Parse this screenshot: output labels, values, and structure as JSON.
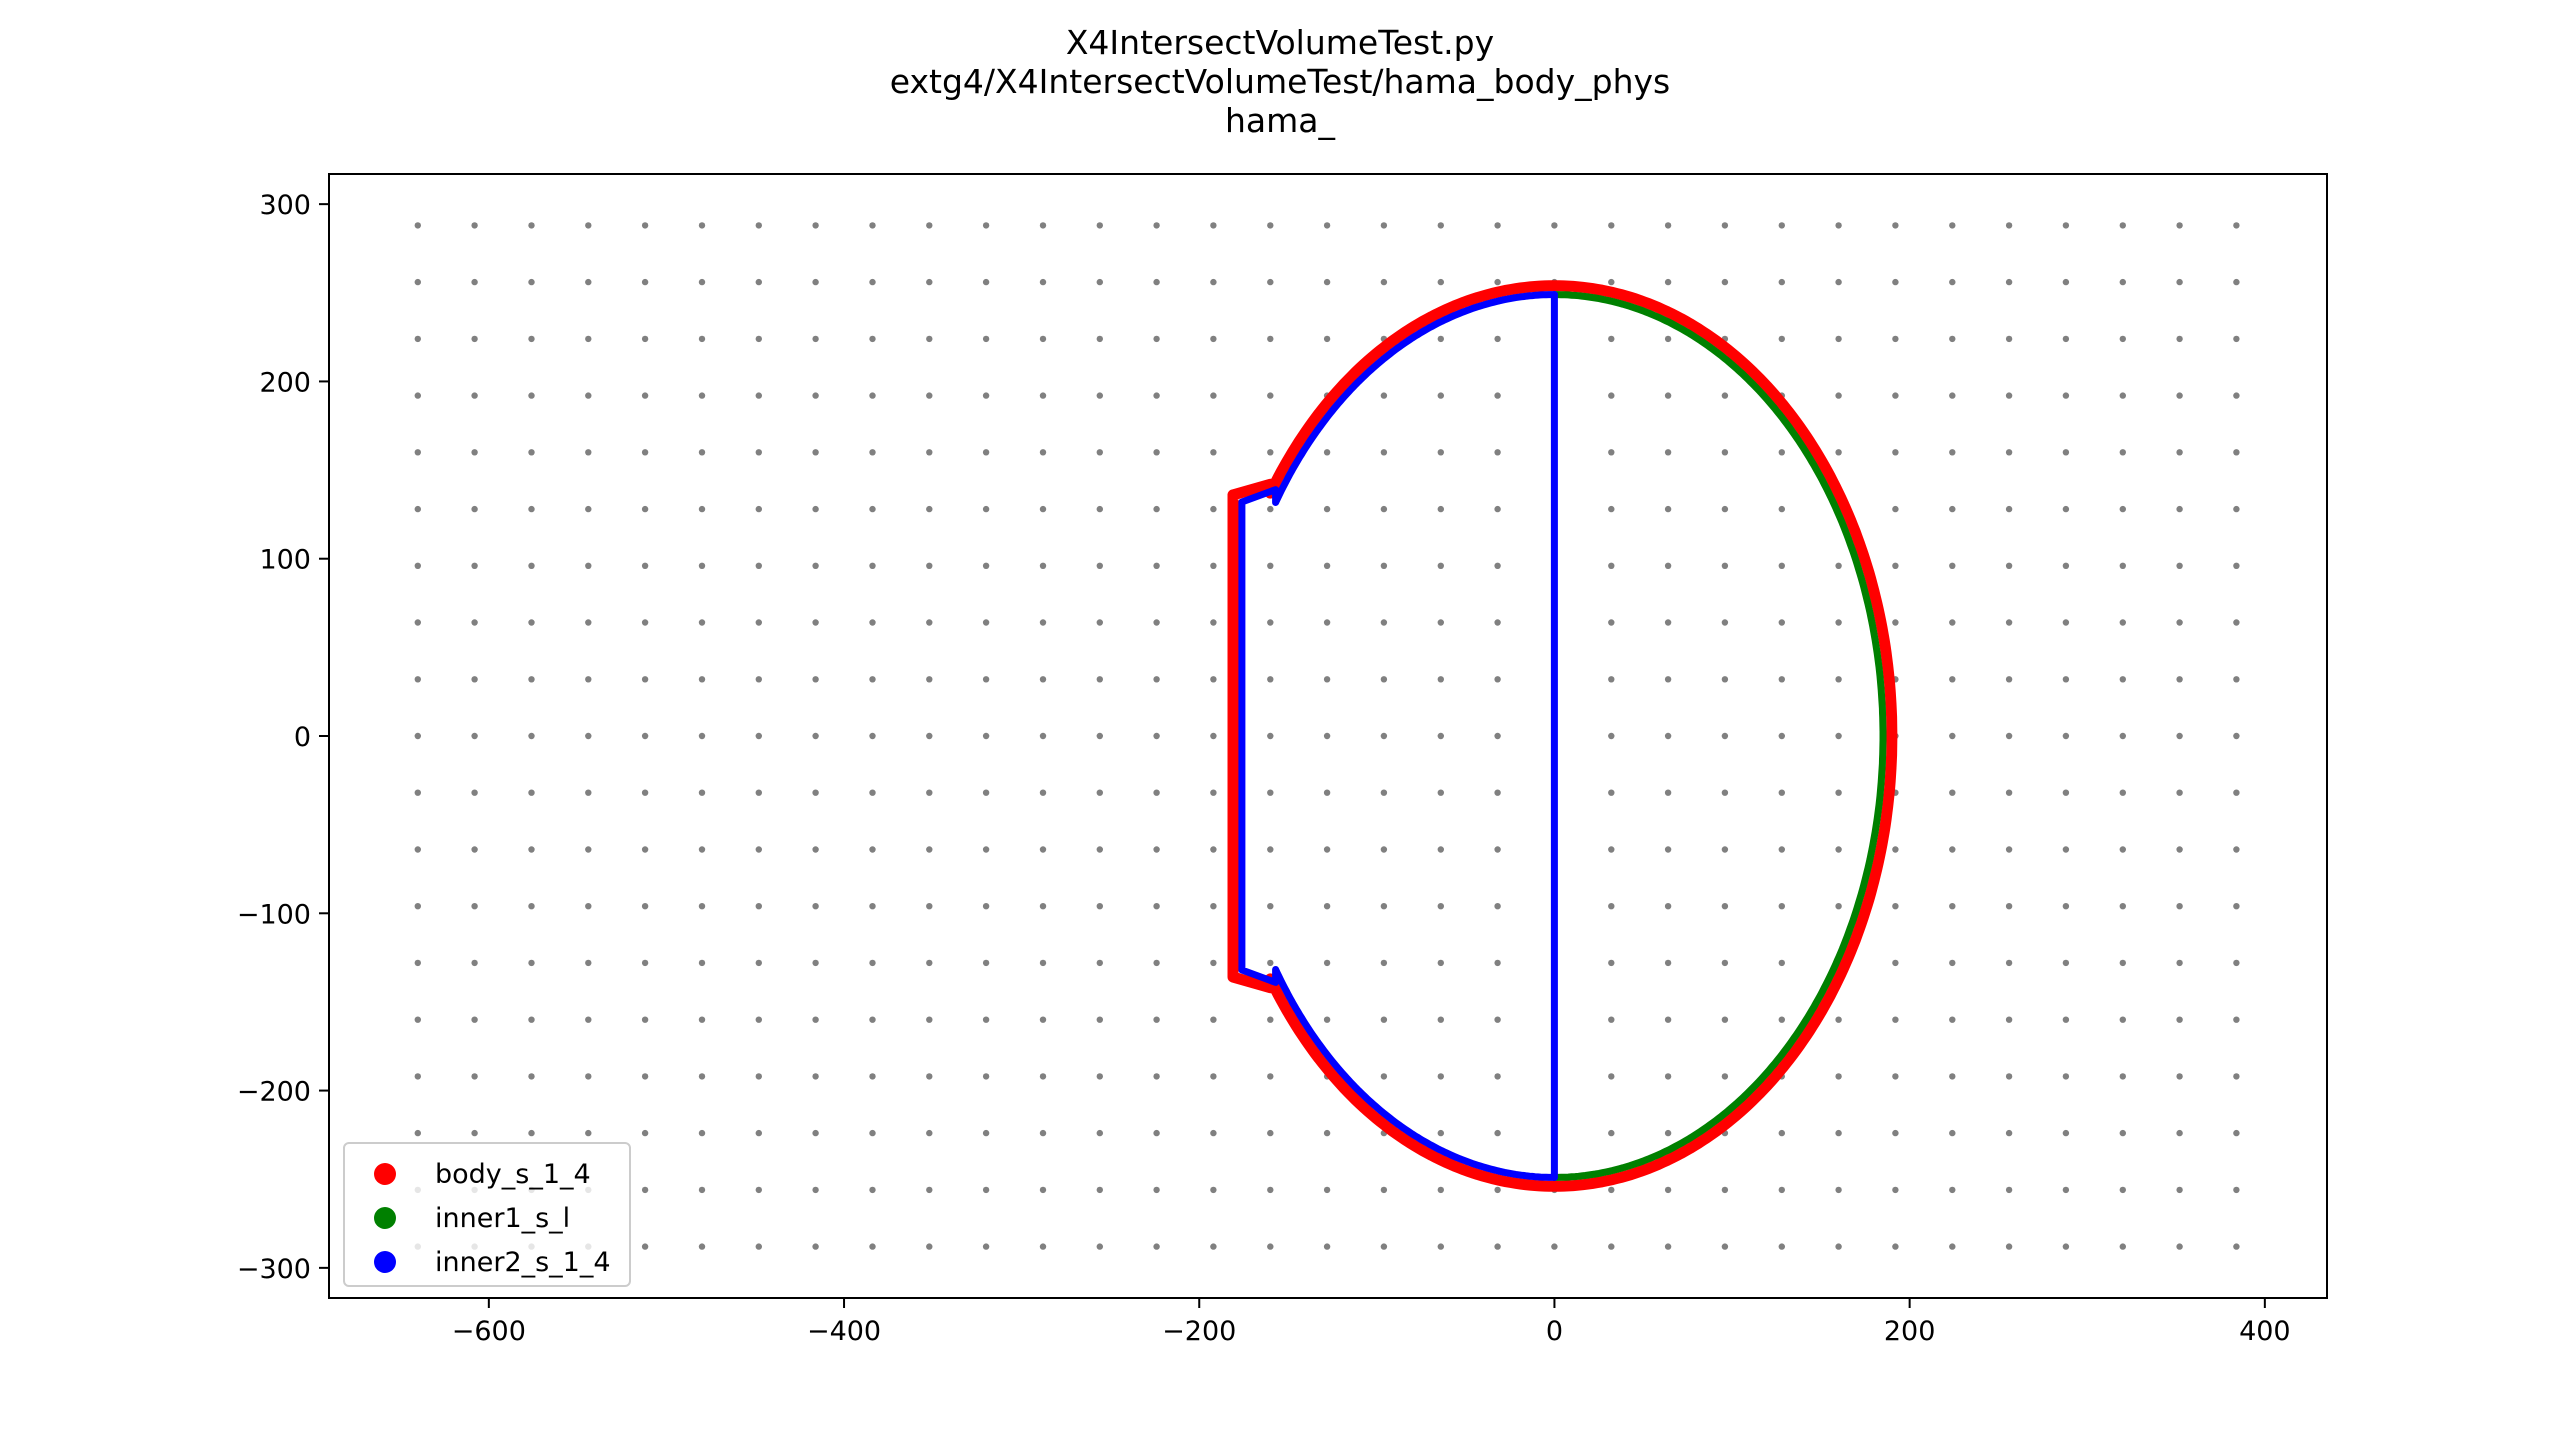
{
  "chart_data": {
    "type": "scatter",
    "title": [
      "X4IntersectVolumeTest.py",
      "extg4/X4IntersectVolumeTest/hama_body_phys",
      "hama_"
    ],
    "xlabel": "",
    "ylabel": "",
    "xlim": [
      -690,
      435
    ],
    "ylim": [
      -317,
      317
    ],
    "xticks": [
      -600,
      -400,
      -200,
      0,
      200,
      400
    ],
    "yticks": [
      -300,
      -200,
      -100,
      0,
      100,
      200,
      300
    ],
    "xtick_labels": [
      "−600",
      "−400",
      "−200",
      "0",
      "200",
      "400"
    ],
    "ytick_labels": [
      "−300",
      "−200",
      "−100",
      "0",
      "100",
      "200",
      "300"
    ],
    "grid": false,
    "legend_position": "lower-left",
    "background_grid_points": {
      "color": "#808080",
      "x_start": -640,
      "x_end": 385,
      "x_step": 32,
      "y_start": -288,
      "y_end": 288,
      "y_step": 32
    },
    "series": [
      {
        "name": "body_s_1_4",
        "color": "#ff0000",
        "shape": "profile",
        "ellipse": {
          "a": 190,
          "b": 254
        },
        "neck": {
          "x": -181,
          "kink": [
            -160,
            142
          ],
          "top_y": 136
        }
      },
      {
        "name": "inner1_s_l",
        "color": "#008000",
        "shape": "half-ellipse",
        "ellipse": {
          "a": 185,
          "b": 249
        }
      },
      {
        "name": "inner2_s_1_4",
        "color": "#0000ff",
        "shape": "profile-with-axis",
        "ellipse": {
          "a": 185,
          "b": 249
        },
        "neck": {
          "x": -176,
          "kink": [
            -157,
            139
          ],
          "top_y": 132
        }
      }
    ]
  }
}
